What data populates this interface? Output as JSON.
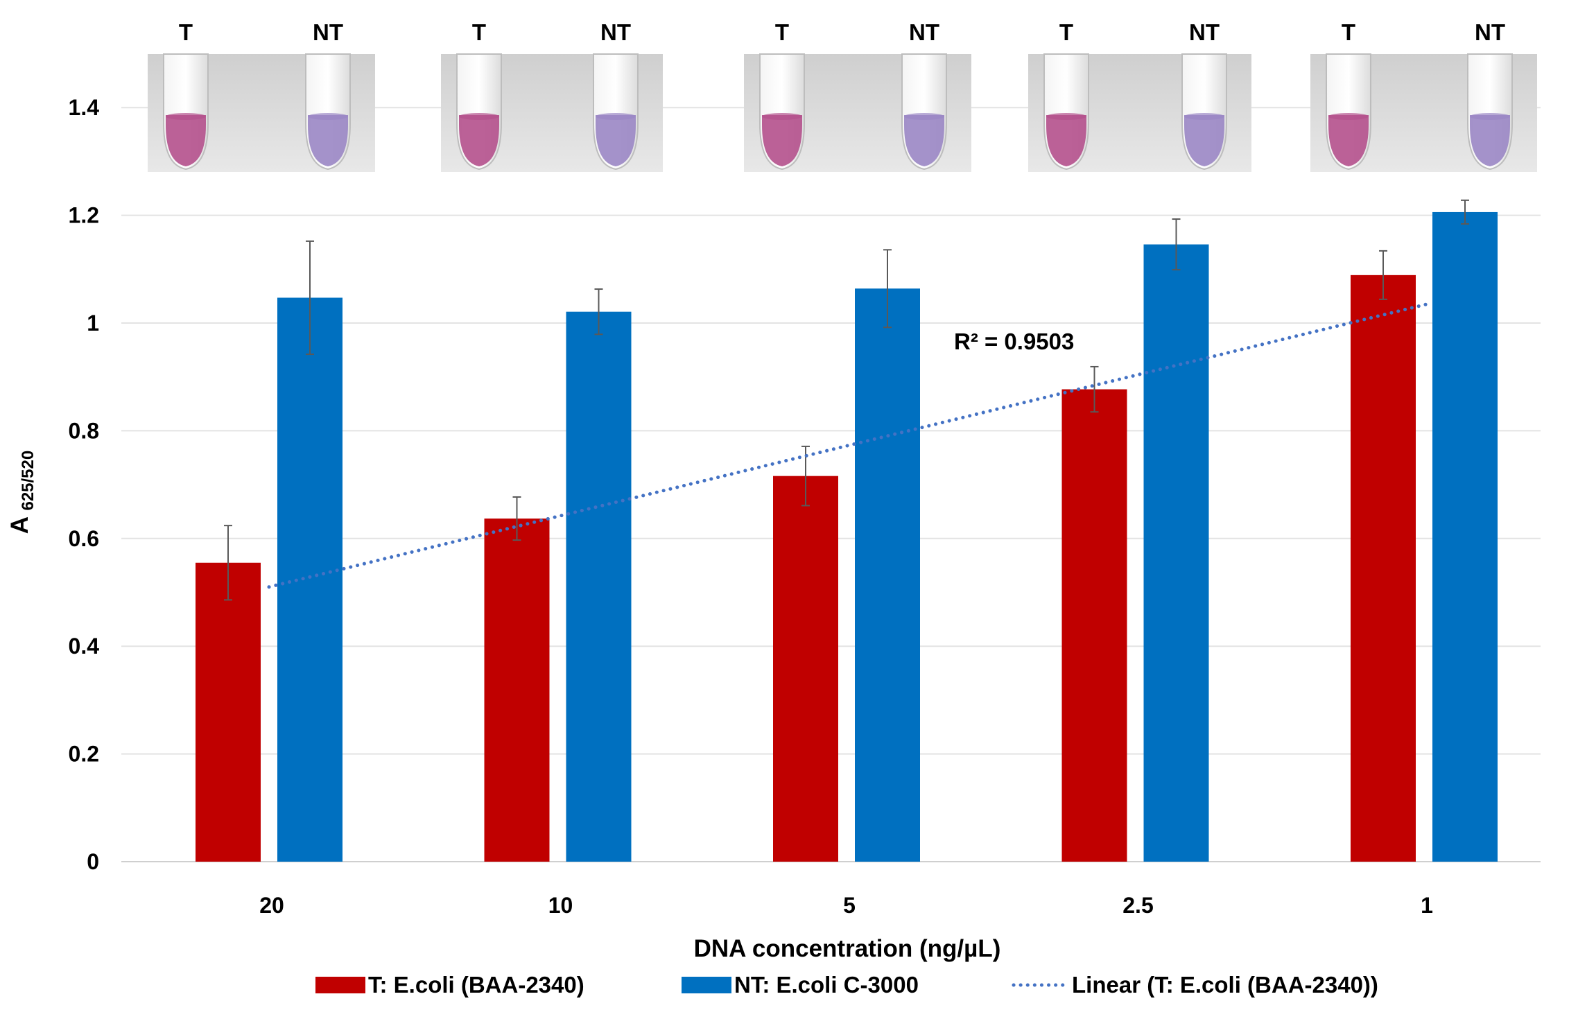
{
  "chart_data": {
    "type": "bar",
    "title": "",
    "xlabel": "DNA concentration (ng/µL)",
    "ylabel_main": "A",
    "ylabel_sub": "625/520",
    "ylim": [
      0,
      1.5
    ],
    "y_ticks": [
      0,
      0.2,
      0.4,
      0.6,
      0.8,
      1,
      1.2,
      1.4
    ],
    "y_tick_labels": [
      "0",
      "0.2",
      "0.4",
      "0.6",
      "0.8",
      "1",
      "1.2",
      "1.4"
    ],
    "categories": [
      "20",
      "10",
      "5",
      "2.5",
      "1"
    ],
    "grid": true,
    "series": [
      {
        "name": "T: E.coli (BAA-2340)",
        "color": "#c00000",
        "values": [
          0.555,
          0.637,
          0.716,
          0.877,
          1.089
        ],
        "errors": [
          0.069,
          0.04,
          0.055,
          0.042,
          0.045
        ]
      },
      {
        "name": "NT: E.coli  C-3000",
        "color": "#0070c0",
        "values": [
          1.047,
          1.021,
          1.064,
          1.146,
          1.206
        ],
        "errors": [
          0.105,
          0.042,
          0.072,
          0.047,
          0.022
        ]
      }
    ],
    "trendline": {
      "name": "Linear (T: E.coli (BAA-2340))",
      "series": "T: E.coli (BAA-2340)",
      "start": 0.51,
      "end": 1.035,
      "color": "#4472c4",
      "annotation": "R² = 0.9503"
    },
    "legend_position": "bottom",
    "tube_images": [
      {
        "left_label": "T",
        "right_label": "NT"
      },
      {
        "left_label": "T",
        "right_label": "NT"
      },
      {
        "left_label": "T",
        "right_label": "NT"
      },
      {
        "left_label": "T",
        "right_label": "NT"
      },
      {
        "left_label": "T",
        "right_label": "NT"
      }
    ]
  }
}
